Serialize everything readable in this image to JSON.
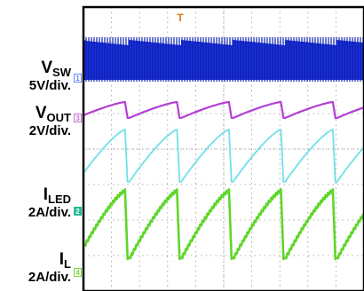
{
  "chart_data": {
    "type": "line",
    "title": "",
    "xlabel": "",
    "ylabel": "",
    "grid": true,
    "divisions": {
      "x": 10,
      "y": 8
    },
    "trigger_marker": "T",
    "series": [
      {
        "name": "V_SW",
        "label_main": "V",
        "label_sub": "SW",
        "scale": "5V/div.",
        "marker": "1",
        "color": "#1a2fd6",
        "style": "switching-band"
      },
      {
        "name": "V_OUT",
        "label_main": "V",
        "label_sub": "OUT",
        "scale": "2V/div.",
        "marker": "3",
        "color": "#b23fd6",
        "style": "sawtooth-small"
      },
      {
        "name": "I_LED",
        "label_main": "I",
        "label_sub": "LED",
        "scale": "2A/div.",
        "marker": "2",
        "color": "#6fe0e8",
        "style": "sawtooth"
      },
      {
        "name": "I_L",
        "label_main": "I",
        "label_sub": "L",
        "scale": "2A/div.",
        "marker": "4",
        "color": "#5ed62a",
        "style": "sawtooth-noisy"
      }
    ],
    "cycles_visible": 5.4
  }
}
